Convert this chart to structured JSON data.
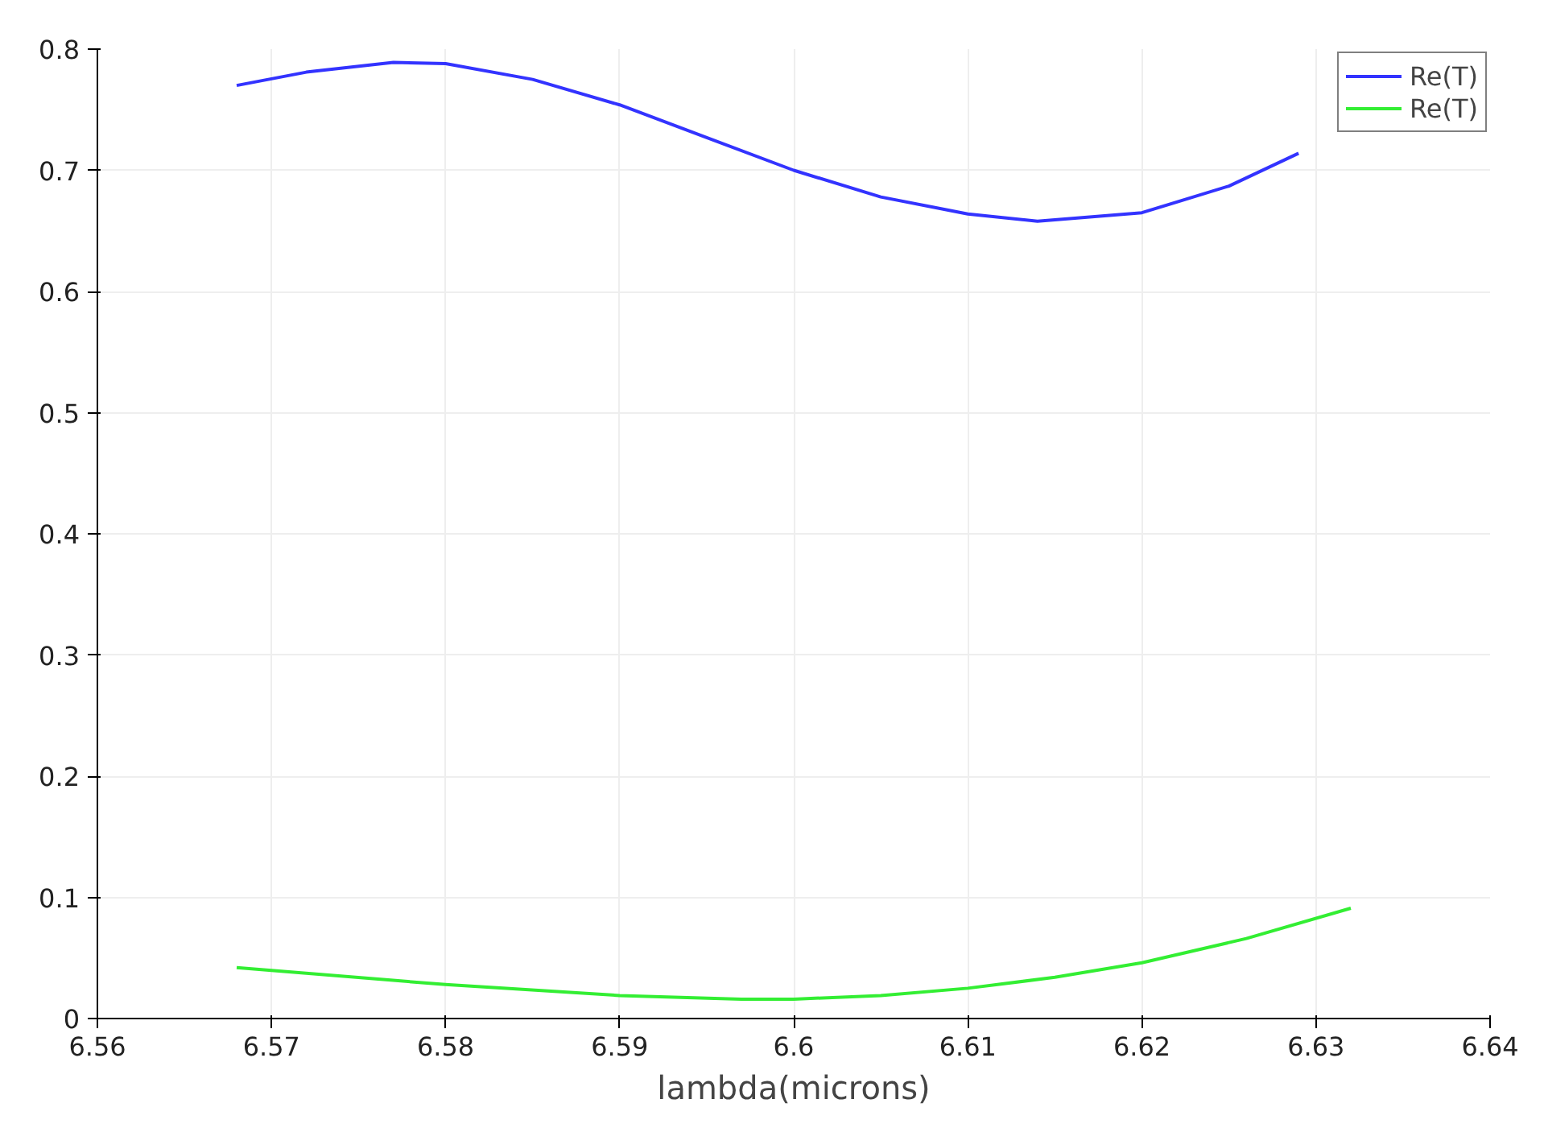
{
  "chart_data": {
    "type": "line",
    "xlabel": "lambda(microns)",
    "xlim": [
      6.56,
      6.64
    ],
    "xticks": [
      6.56,
      6.57,
      6.58,
      6.59,
      {
        "value": 6.6,
        "label": "6.6"
      },
      6.61,
      6.62,
      6.63,
      6.64
    ],
    "ylim": [
      0,
      0.8
    ],
    "yticks": [
      0,
      0.1,
      0.2,
      0.3,
      0.4,
      0.5,
      0.6,
      0.7,
      0.8
    ],
    "grid": true,
    "legend": "top right",
    "marker": "none",
    "line_style": "solid",
    "series": [
      {
        "name": "Re(T)",
        "color": "#3333ff",
        "x": [
          6.568,
          6.572,
          6.577,
          6.58,
          6.585,
          6.59,
          6.595,
          6.6,
          6.605,
          6.61,
          6.614,
          6.62,
          6.625,
          6.629
        ],
        "values": [
          0.77,
          0.781,
          0.789,
          0.788,
          0.775,
          0.754,
          0.727,
          0.7,
          0.678,
          0.664,
          0.658,
          0.665,
          0.687,
          0.714
        ]
      },
      {
        "name": "Re(T)",
        "color": "#33ee33",
        "x": [
          6.568,
          6.58,
          6.59,
          6.597,
          6.6,
          6.605,
          6.61,
          6.615,
          6.62,
          6.626,
          6.632
        ],
        "values": [
          0.042,
          0.028,
          0.019,
          0.016,
          0.016,
          0.019,
          0.025,
          0.034,
          0.046,
          0.066,
          0.091
        ]
      }
    ]
  }
}
